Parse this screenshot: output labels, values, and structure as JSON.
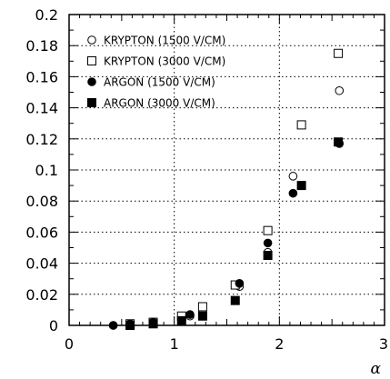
{
  "chart_data": {
    "type": "scatter",
    "title": "",
    "xlabel": "α",
    "ylabel": "",
    "xlim": [
      0,
      3
    ],
    "ylim": [
      0,
      0.2
    ],
    "x_ticks": [
      "0",
      "1",
      "2",
      "3"
    ],
    "y_ticks": [
      "0",
      "0.02",
      "0.04",
      "0.06",
      "0.08",
      "0.1",
      "0.12",
      "0.14",
      "0.16",
      "0.18",
      "0.2"
    ],
    "grid": true,
    "legend_position": "top-left",
    "series": [
      {
        "name": "KRYPTON  (1500 V/CM)",
        "marker": "open-circle",
        "points": [
          [
            0.42,
            0.0
          ],
          [
            0.58,
            0.0
          ],
          [
            0.8,
            0.002
          ],
          [
            1.07,
            0.003
          ],
          [
            1.15,
            0.006
          ],
          [
            1.27,
            0.008
          ],
          [
            1.62,
            0.025
          ],
          [
            1.89,
            0.047
          ],
          [
            2.13,
            0.096
          ],
          [
            2.57,
            0.151
          ]
        ]
      },
      {
        "name": "KRYPTON  (3000 V/CM)",
        "marker": "open-square",
        "points": [
          [
            0.58,
            0.001
          ],
          [
            0.8,
            0.002
          ],
          [
            1.07,
            0.006
          ],
          [
            1.27,
            0.012
          ],
          [
            1.58,
            0.026
          ],
          [
            1.89,
            0.061
          ],
          [
            2.21,
            0.129
          ],
          [
            2.56,
            0.175
          ]
        ]
      },
      {
        "name": "ARGON  (1500 V/CM)",
        "marker": "filled-circle",
        "points": [
          [
            0.42,
            0.0
          ],
          [
            0.58,
            0.001
          ],
          [
            0.8,
            0.002
          ],
          [
            1.15,
            0.007
          ],
          [
            1.62,
            0.027
          ],
          [
            1.89,
            0.053
          ],
          [
            2.13,
            0.085
          ],
          [
            2.57,
            0.117
          ]
        ]
      },
      {
        "name": "ARGON  (3000 V/CM)",
        "marker": "filled-square",
        "points": [
          [
            0.58,
            0.0
          ],
          [
            0.8,
            0.001
          ],
          [
            1.07,
            0.003
          ],
          [
            1.27,
            0.006
          ],
          [
            1.58,
            0.016
          ],
          [
            1.89,
            0.045
          ],
          [
            2.21,
            0.09
          ],
          [
            2.56,
            0.118
          ]
        ]
      }
    ]
  }
}
